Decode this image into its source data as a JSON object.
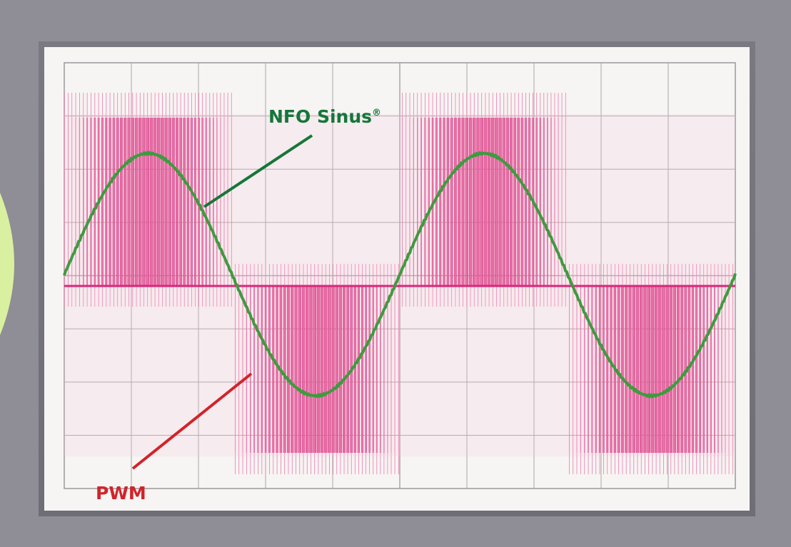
{
  "labels": {
    "sine": {
      "text": "NFO Sinus",
      "mark": "®"
    },
    "pwm": "PWM"
  }
}
